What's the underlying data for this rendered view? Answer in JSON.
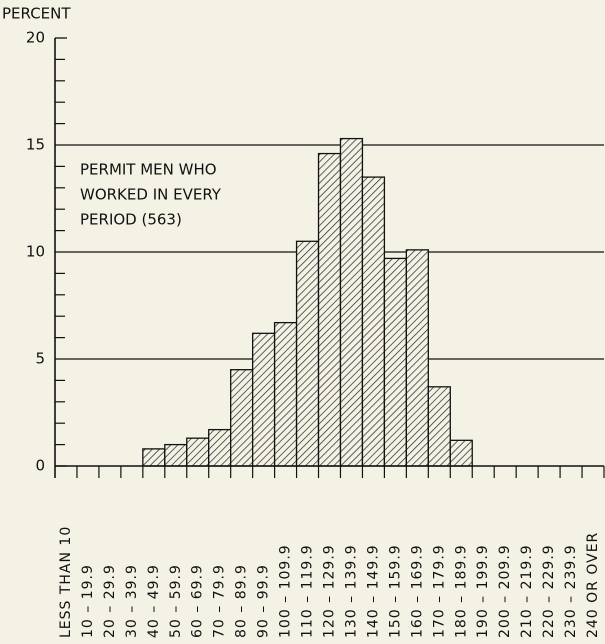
{
  "chart_data": {
    "type": "bar",
    "y_label": "PERCENT",
    "annotation": [
      "PERMIT MEN WHO",
      "WORKED IN EVERY",
      "PERIOD (563)"
    ],
    "categories": [
      "LESS THAN 10",
      "10 – 19.9",
      "20 – 29.9",
      "30 – 39.9",
      "40 – 49.9",
      "50 – 59.9",
      "60 – 69.9",
      "70 – 79.9",
      "80 – 89.9",
      "90 – 99.9",
      "100 – 109.9",
      "110 – 119.9",
      "120 – 129.9",
      "130 – 139.9",
      "140 – 149.9",
      "150 – 159.9",
      "160 – 169.9",
      "170 – 179.9",
      "180 – 189.9",
      "190 – 199.9",
      "200 – 209.9",
      "210 – 219.9",
      "220 – 229.9",
      "230 – 239.9",
      "240 OR OVER"
    ],
    "values": [
      0,
      0,
      0,
      0,
      0.8,
      1.0,
      1.3,
      1.7,
      4.5,
      6.2,
      6.7,
      10.5,
      14.6,
      15.3,
      13.5,
      9.7,
      10.1,
      3.7,
      1.2,
      0,
      0,
      0,
      0,
      0,
      0
    ],
    "color": "#111111",
    "ylim": [
      0,
      20
    ],
    "yticks": [
      0,
      5,
      10,
      15,
      20
    ],
    "grid": true,
    "hatch": true
  }
}
